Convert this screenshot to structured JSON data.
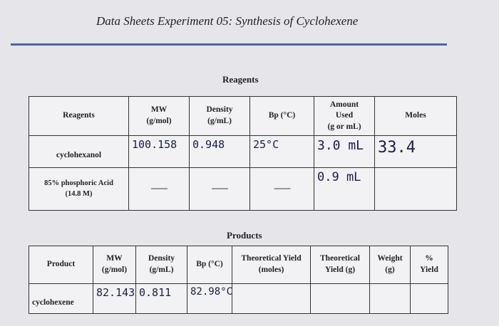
{
  "header": {
    "title": "Data Sheets Experiment 05: Synthesis of Cyclohexene"
  },
  "reagents": {
    "title": "Reagents",
    "columns": [
      [
        "Reagents"
      ],
      [
        "MW",
        "(g/mol)"
      ],
      [
        "Density",
        "(g/mL)"
      ],
      [
        "Bp (°C)"
      ],
      [
        "Amount",
        "Used",
        "(g or mL)"
      ],
      [
        "Moles"
      ]
    ],
    "rows": [
      {
        "name": [
          "cyclohexanol"
        ],
        "mw": "100.158",
        "density": "0.948",
        "bp": "25°C",
        "amount": "3.0 mL",
        "moles": "33.4"
      },
      {
        "name": [
          "85% phosphoric Acid",
          "(14.8 M)"
        ],
        "mw": "--------",
        "density": "--------",
        "bp": "--------",
        "amount": "0.9 mL"
      }
    ]
  },
  "products": {
    "title": "Products",
    "columns": [
      [
        "Product"
      ],
      [
        "MW",
        "(g/mol)"
      ],
      [
        "Density",
        "(g/mL)"
      ],
      [
        "Bp (°C)"
      ],
      [
        "Theoretical Yield",
        "(moles)"
      ],
      [
        "Theoretical",
        "Yield (g)"
      ],
      [
        "Weight",
        "(g)"
      ],
      [
        "%",
        "Yield"
      ]
    ],
    "rows": [
      {
        "name": "cyclohexene",
        "mw": "82.143",
        "density": "0.811",
        "bp": "82.98°C"
      }
    ]
  }
}
